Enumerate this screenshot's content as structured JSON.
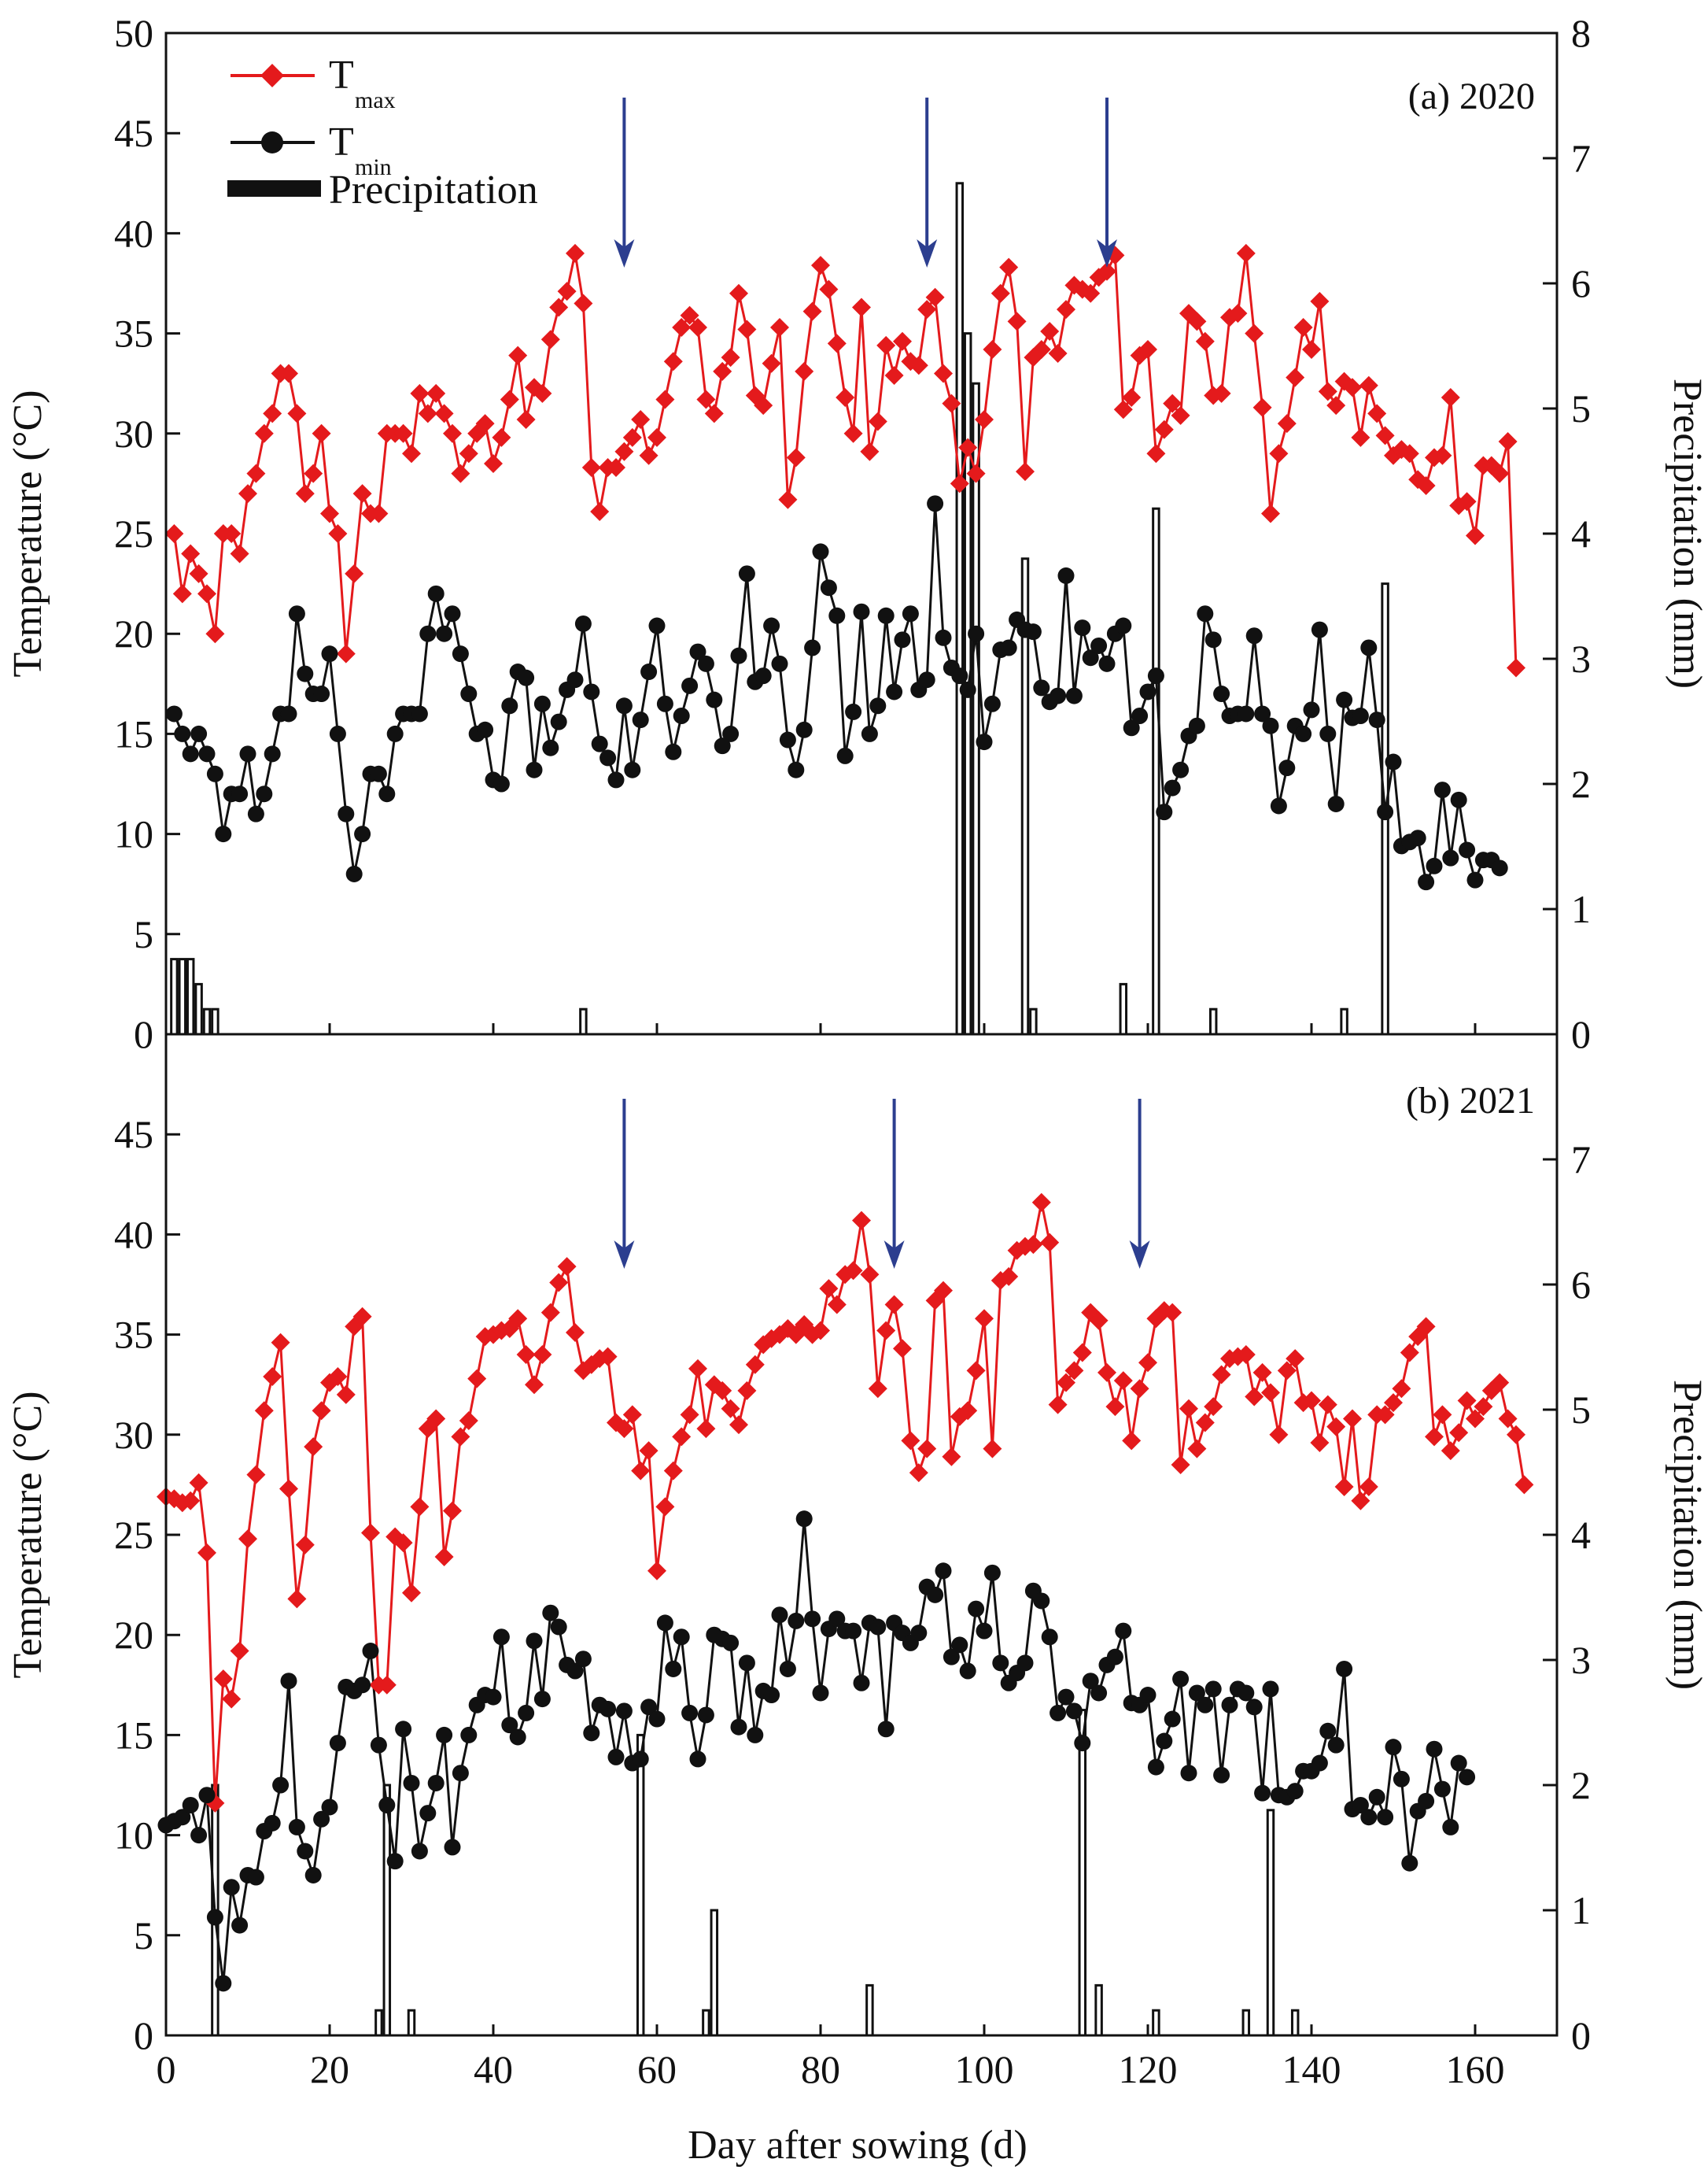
{
  "colors": {
    "tmax": "#e41a1c",
    "tmin": "#111111",
    "precip": "#111111",
    "arrow": "#2c3e8f"
  },
  "legend": {
    "tmax_main": "T",
    "tmax_sub": "max",
    "tmin_main": "T",
    "tmin_sub": "min",
    "precip": "Precipitation"
  },
  "xlabel": "Day after sowing (d)",
  "chart_data": [
    {
      "type": "line",
      "title": "(a) 2020",
      "xlabel": "Day after sowing (d)",
      "ylabel": "Temperature (°C)",
      "y2label": "Precipitation (mm)",
      "xlim": [
        0,
        170
      ],
      "ylim": [
        0,
        50
      ],
      "y2lim": [
        0,
        8
      ],
      "xticks": [
        "0",
        "20",
        "40",
        "60",
        "80",
        "100",
        "120",
        "140",
        "160"
      ],
      "yticks": [
        "0",
        "5",
        "10",
        "15",
        "20",
        "25",
        "30",
        "35",
        "40",
        "45",
        "50"
      ],
      "y2ticks": [
        "0",
        "1",
        "2",
        "3",
        "4",
        "5",
        "6",
        "7",
        "8"
      ],
      "arrows": [
        56,
        93,
        115
      ],
      "series": [
        {
          "name": "Tmax",
          "x_start": 1,
          "values": [
            25,
            22,
            24,
            23,
            22,
            20,
            25,
            25,
            24,
            27,
            28,
            30,
            31,
            33,
            33,
            31,
            27,
            28,
            30,
            26,
            25,
            19,
            23,
            27,
            26,
            26,
            30,
            30,
            30,
            29,
            32,
            31,
            32,
            31,
            30,
            28,
            29,
            30,
            30.5,
            28.5,
            29.8,
            31.7,
            33.9,
            30.7,
            32.3,
            32,
            34.7,
            36.3,
            37.1,
            39.0,
            36.5,
            28.3,
            26.1,
            28.3,
            28.3,
            29.1,
            29.8,
            30.7,
            28.9,
            29.8,
            31.7,
            33.6,
            35.3,
            35.9,
            35.3,
            31.7,
            31.0,
            33.1,
            33.8,
            37.0,
            35.2,
            31.9,
            31.4,
            33.5,
            35.3,
            26.7,
            28.8,
            33.1,
            36.1,
            38.4,
            37.2,
            34.5,
            31.8,
            30.0,
            36.3,
            29.1,
            30.6,
            34.4,
            32.9,
            34.6,
            33.6,
            33.4,
            36.2,
            36.8,
            33.0,
            31.5,
            27.5,
            29.3,
            28.0,
            30.7,
            34.2,
            37.0,
            38.3,
            35.6,
            28.1,
            33.8,
            34.2,
            35.1,
            34.0,
            36.2,
            37.4,
            37.2,
            37.0,
            37.8,
            38.1,
            38.9,
            31.2,
            31.8,
            33.9,
            34.2,
            29.0,
            30.2,
            31.5,
            30.9,
            36.0,
            35.6,
            34.6,
            31.9,
            32.0,
            35.8,
            36.0,
            39.0,
            35.0,
            31.3,
            26.0,
            29.0,
            30.5,
            32.8,
            35.3,
            34.2,
            36.6,
            32.1,
            31.4,
            32.6,
            32.3,
            29.8,
            32.4,
            31.0,
            29.9,
            28.9,
            29.2,
            29.0,
            27.7,
            27.4,
            28.8,
            28.9,
            31.8,
            26.4,
            26.6,
            24.9,
            28.4,
            28.4,
            28.0,
            29.6,
            18.3
          ]
        },
        {
          "name": "Tmin",
          "x_start": 1,
          "values": [
            16,
            15,
            14,
            15,
            14,
            13,
            10,
            12,
            12,
            14,
            11,
            12,
            14,
            16,
            16,
            21,
            18,
            17,
            17,
            19,
            15,
            11,
            8,
            10,
            13,
            13,
            12,
            15,
            16,
            16,
            16,
            20,
            22,
            20,
            21,
            19,
            17,
            15,
            15.2,
            12.7,
            12.5,
            16.4,
            18.1,
            17.8,
            13.2,
            16.5,
            14.3,
            15.6,
            17.2,
            17.7,
            20.5,
            17.1,
            14.5,
            13.8,
            12.7,
            16.4,
            13.2,
            15.7,
            18.1,
            20.4,
            16.5,
            14.1,
            15.9,
            17.4,
            19.1,
            18.5,
            16.7,
            14.4,
            15.0,
            18.9,
            23.0,
            17.6,
            17.9,
            20.4,
            18.5,
            14.7,
            13.2,
            15.2,
            19.3,
            24.1,
            22.3,
            20.9,
            13.9,
            16.1,
            21.1,
            15.0,
            16.4,
            20.9,
            17.1,
            19.7,
            21.0,
            17.2,
            17.7,
            26.5,
            19.8,
            18.3,
            17.9,
            17.2,
            20.0,
            14.6,
            16.5,
            19.2,
            19.3,
            20.7,
            20.2,
            20.1,
            17.3,
            16.6,
            16.9,
            22.9,
            16.9,
            20.3,
            18.8,
            19.4,
            18.5,
            20.0,
            20.4,
            15.3,
            15.9,
            17.1,
            17.9,
            11.1,
            12.3,
            13.2,
            14.9,
            15.4,
            21.0,
            19.7,
            17.0,
            15.9,
            16.0,
            16.0,
            19.9,
            16.0,
            15.4,
            11.4,
            13.3,
            15.4,
            15.0,
            16.2,
            20.2,
            15.0,
            11.5,
            16.7,
            15.8,
            15.9,
            19.3,
            15.7,
            11.1,
            13.6,
            9.4,
            9.6,
            9.8,
            7.6,
            8.4,
            12.2,
            8.8,
            11.7,
            9.2,
            7.7,
            8.7,
            8.7,
            8.3
          ]
        }
      ],
      "precipitation": {
        "name": "Precipitation",
        "days": [
          1,
          2,
          3,
          4,
          5,
          6,
          51,
          97,
          98,
          99,
          105,
          106,
          117,
          121,
          128,
          144,
          149
        ],
        "values": [
          0.6,
          0.6,
          0.6,
          0.4,
          0.2,
          0.2,
          0.2,
          6.8,
          5.6,
          5.2,
          3.8,
          0.2,
          0.4,
          4.2,
          0.2,
          0.2,
          3.6
        ]
      }
    },
    {
      "type": "line",
      "title": "(b) 2021",
      "xlabel": "Day after sowing (d)",
      "ylabel": "Temperature (°C)",
      "y2label": "Precipitation (mm)",
      "xlim": [
        0,
        170
      ],
      "ylim": [
        0,
        50
      ],
      "y2lim": [
        0,
        8
      ],
      "xticks": [
        "0",
        "20",
        "40",
        "60",
        "80",
        "100",
        "120",
        "140",
        "160"
      ],
      "yticks": [
        "0",
        "5",
        "10",
        "15",
        "20",
        "25",
        "30",
        "35",
        "40",
        "45"
      ],
      "y2ticks": [
        "0",
        "1",
        "2",
        "3",
        "4",
        "5",
        "6",
        "7"
      ],
      "arrows": [
        56,
        89,
        119
      ],
      "series": [
        {
          "name": "Tmax",
          "x_start": 0,
          "values": [
            26.9,
            26.8,
            26.6,
            26.7,
            27.6,
            24.1,
            11.6,
            17.8,
            16.8,
            19.2,
            24.8,
            28.0,
            31.2,
            32.9,
            34.6,
            27.3,
            21.8,
            24.5,
            29.4,
            31.2,
            32.6,
            32.9,
            32.0,
            35.4,
            35.9,
            25.1,
            17.5,
            17.5,
            24.9,
            24.6,
            22.1,
            26.4,
            30.3,
            30.8,
            23.9,
            26.2,
            29.9,
            30.7,
            32.8,
            34.9,
            35.0,
            35.2,
            35.3,
            35.8,
            34.0,
            32.5,
            34.0,
            36.1,
            37.6,
            38.4,
            35.1,
            33.2,
            33.5,
            33.8,
            33.9,
            30.6,
            30.3,
            31.0,
            28.2,
            29.2,
            23.2,
            26.4,
            28.2,
            29.9,
            31.0,
            33.3,
            30.3,
            32.5,
            32.2,
            31.3,
            30.5,
            32.2,
            33.5,
            34.5,
            34.8,
            35.0,
            35.3,
            35.0,
            35.5,
            35.0,
            35.2,
            37.3,
            36.5,
            38.0,
            38.2,
            40.7,
            38.0,
            32.3,
            35.2,
            36.5,
            34.3,
            29.7,
            28.1,
            29.3,
            36.7,
            37.2,
            28.9,
            30.9,
            31.2,
            33.2,
            35.8,
            29.3,
            37.7,
            37.9,
            39.2,
            39.4,
            39.5,
            41.6,
            39.6,
            31.5,
            32.6,
            33.2,
            34.1,
            36.1,
            35.7,
            33.1,
            31.4,
            32.7,
            29.7,
            32.3,
            33.6,
            35.8,
            36.2,
            36.1,
            28.5,
            31.3,
            29.3,
            30.6,
            31.4,
            33.0,
            33.8,
            33.9,
            34.0,
            31.9,
            33.1,
            32.1,
            30.0,
            33.2,
            33.8,
            31.6,
            31.7,
            29.6,
            31.5,
            30.4,
            27.4,
            30.8,
            26.7,
            27.4,
            31.0,
            31.0,
            31.6,
            32.3,
            34.1,
            34.9,
            35.4,
            29.9,
            31.0,
            29.2,
            30.1,
            31.7,
            30.8,
            31.4,
            32.2,
            32.6,
            30.8,
            30.0,
            27.5
          ]
        },
        {
          "name": "Tmin",
          "x_start": 0,
          "values": [
            10.5,
            10.7,
            10.9,
            11.5,
            10.0,
            12.0,
            5.9,
            2.6,
            7.4,
            5.5,
            8.0,
            7.9,
            10.2,
            10.6,
            12.5,
            17.7,
            10.4,
            9.2,
            8.0,
            10.8,
            11.4,
            14.6,
            17.4,
            17.2,
            17.5,
            19.2,
            14.5,
            11.5,
            8.7,
            15.3,
            12.6,
            9.2,
            11.1,
            12.6,
            15.0,
            9.4,
            13.1,
            15.0,
            16.5,
            17.0,
            16.9,
            19.9,
            15.5,
            14.9,
            16.1,
            19.7,
            16.8,
            21.1,
            20.4,
            18.5,
            18.2,
            18.8,
            15.1,
            16.5,
            16.3,
            13.9,
            16.2,
            13.6,
            13.8,
            16.4,
            15.8,
            20.6,
            18.3,
            19.9,
            16.1,
            13.8,
            16.0,
            20.0,
            19.8,
            19.6,
            15.4,
            18.6,
            15.0,
            17.2,
            17.0,
            21.0,
            18.3,
            20.7,
            25.8,
            20.8,
            17.1,
            20.3,
            20.8,
            20.2,
            20.2,
            17.6,
            20.6,
            20.4,
            15.3,
            20.6,
            20.1,
            19.6,
            20.1,
            22.4,
            22.0,
            23.2,
            18.9,
            19.5,
            18.2,
            21.3,
            20.2,
            23.1,
            18.6,
            17.6,
            18.1,
            18.6,
            22.2,
            21.7,
            19.9,
            16.1,
            16.9,
            16.2,
            14.6,
            17.7,
            17.1,
            18.5,
            18.9,
            20.2,
            16.6,
            16.5,
            17.0,
            13.4,
            14.7,
            15.8,
            17.8,
            13.1,
            17.1,
            16.5,
            17.3,
            13.0,
            16.5,
            17.3,
            17.1,
            16.4,
            12.1,
            17.3,
            12.0,
            11.9,
            12.2,
            13.2,
            13.2,
            13.6,
            15.2,
            14.5,
            18.3,
            11.3,
            11.5,
            10.9,
            11.9,
            10.9,
            14.4,
            12.8,
            8.6,
            11.2,
            11.7,
            14.3,
            12.3,
            10.4,
            13.6,
            12.9
          ]
        }
      ],
      "precipitation": {
        "name": "Precipitation",
        "days": [
          6,
          26,
          27,
          30,
          58,
          66,
          67,
          86,
          112,
          114,
          121,
          132,
          135,
          138
        ],
        "values": [
          2.0,
          0.2,
          2.0,
          0.2,
          2.4,
          0.2,
          1.0,
          0.4,
          2.6,
          0.4,
          0.2,
          0.2,
          1.8,
          0.2
        ]
      }
    }
  ]
}
